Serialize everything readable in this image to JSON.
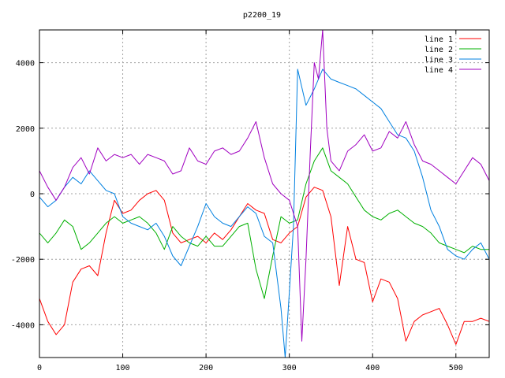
{
  "chart_data": {
    "type": "line",
    "title": "p2200_19",
    "xlabel": "",
    "ylabel": "",
    "xlim": [
      0,
      540
    ],
    "ylim": [
      -5000,
      5000
    ],
    "xticks": [
      0,
      100,
      200,
      300,
      400,
      500
    ],
    "yticks": [
      -4000,
      -2000,
      0,
      2000,
      4000
    ],
    "grid": true,
    "legend_position": "top-right",
    "series": [
      {
        "name": "line 1",
        "color": "#ff0000",
        "x": [
          0,
          10,
          20,
          30,
          40,
          50,
          60,
          70,
          80,
          90,
          100,
          110,
          120,
          130,
          140,
          150,
          160,
          170,
          180,
          190,
          200,
          210,
          220,
          230,
          240,
          250,
          260,
          270,
          280,
          290,
          300,
          310,
          320,
          330,
          340,
          350,
          360,
          370,
          380,
          390,
          400,
          410,
          420,
          430,
          440,
          450,
          460,
          470,
          480,
          490,
          500,
          510,
          520,
          530,
          540
        ],
        "y": [
          -3200,
          -3900,
          -4300,
          -4000,
          -2700,
          -2300,
          -2200,
          -2500,
          -1200,
          -200,
          -600,
          -500,
          -200,
          0,
          100,
          -200,
          -1200,
          -1500,
          -1400,
          -1300,
          -1500,
          -1200,
          -1400,
          -1100,
          -700,
          -300,
          -500,
          -600,
          -1400,
          -1500,
          -1200,
          -1000,
          -100,
          200,
          100,
          -700,
          -2800,
          -1000,
          -2000,
          -2100,
          -3300,
          -2600,
          -2700,
          -3200,
          -4500,
          -3900,
          -3700,
          -3600,
          -3500,
          -4000,
          -4600,
          -3900,
          -3900,
          -3800,
          -3900
        ]
      },
      {
        "name": "line 2",
        "color": "#00b000",
        "x": [
          0,
          10,
          20,
          30,
          40,
          50,
          60,
          70,
          80,
          90,
          100,
          110,
          120,
          130,
          140,
          150,
          160,
          170,
          180,
          190,
          200,
          210,
          220,
          230,
          240,
          250,
          260,
          270,
          280,
          290,
          300,
          310,
          320,
          330,
          340,
          350,
          360,
          370,
          380,
          390,
          400,
          410,
          420,
          430,
          440,
          450,
          460,
          470,
          480,
          490,
          500,
          510,
          520,
          530,
          540
        ],
        "y": [
          -1200,
          -1500,
          -1200,
          -800,
          -1000,
          -1700,
          -1500,
          -1200,
          -900,
          -700,
          -900,
          -800,
          -700,
          -900,
          -1200,
          -1700,
          -1000,
          -1300,
          -1500,
          -1600,
          -1300,
          -1600,
          -1600,
          -1300,
          -1000,
          -900,
          -2300,
          -3200,
          -1900,
          -700,
          -900,
          -800,
          300,
          1000,
          1400,
          700,
          500,
          300,
          -100,
          -500,
          -700,
          -800,
          -600,
          -500,
          -700,
          -900,
          -1000,
          -1200,
          -1500,
          -1600,
          -1700,
          -1800,
          -1600,
          -1700,
          -1700
        ]
      },
      {
        "name": "line 3",
        "color": "#0080e0",
        "x": [
          0,
          10,
          20,
          30,
          40,
          50,
          60,
          70,
          80,
          90,
          100,
          110,
          120,
          130,
          140,
          150,
          160,
          170,
          180,
          190,
          200,
          210,
          220,
          230,
          240,
          250,
          260,
          270,
          280,
          290,
          295,
          300,
          305,
          310,
          320,
          330,
          340,
          350,
          360,
          370,
          380,
          390,
          400,
          410,
          420,
          430,
          440,
          450,
          460,
          470,
          480,
          490,
          500,
          510,
          520,
          530,
          540
        ],
        "y": [
          -100,
          -400,
          -200,
          200,
          500,
          300,
          700,
          400,
          100,
          0,
          -700,
          -900,
          -1000,
          -1100,
          -900,
          -1300,
          -1900,
          -2200,
          -1600,
          -1000,
          -300,
          -700,
          -900,
          -1000,
          -700,
          -400,
          -600,
          -1300,
          -1500,
          -3500,
          -5000,
          -3000,
          -1000,
          3800,
          2700,
          3200,
          3800,
          3500,
          3400,
          3300,
          3200,
          3000,
          2800,
          2600,
          2200,
          1800,
          1700,
          1300,
          500,
          -500,
          -1000,
          -1700,
          -1900,
          -2000,
          -1700,
          -1500,
          -2000
        ]
      },
      {
        "name": "line 4",
        "color": "#a000c0",
        "x": [
          0,
          10,
          20,
          30,
          40,
          50,
          60,
          70,
          80,
          90,
          100,
          110,
          120,
          130,
          140,
          150,
          160,
          170,
          180,
          190,
          200,
          210,
          220,
          230,
          240,
          250,
          260,
          270,
          280,
          290,
          300,
          310,
          315,
          320,
          325,
          330,
          335,
          340,
          345,
          350,
          360,
          370,
          380,
          390,
          400,
          410,
          420,
          430,
          440,
          450,
          460,
          470,
          480,
          490,
          500,
          510,
          520,
          530,
          540
        ],
        "y": [
          700,
          200,
          -200,
          200,
          800,
          1100,
          600,
          1400,
          1000,
          1200,
          1100,
          1200,
          900,
          1200,
          1100,
          1000,
          600,
          700,
          1400,
          1000,
          900,
          1300,
          1400,
          1200,
          1300,
          1700,
          2200,
          1100,
          300,
          0,
          -200,
          -1000,
          -4500,
          -2000,
          1200,
          4000,
          3500,
          5000,
          2000,
          1000,
          700,
          1300,
          1500,
          1800,
          1300,
          1400,
          1900,
          1700,
          2200,
          1500,
          1000,
          900,
          700,
          500,
          300,
          700,
          1100,
          900,
          400
        ]
      }
    ]
  }
}
